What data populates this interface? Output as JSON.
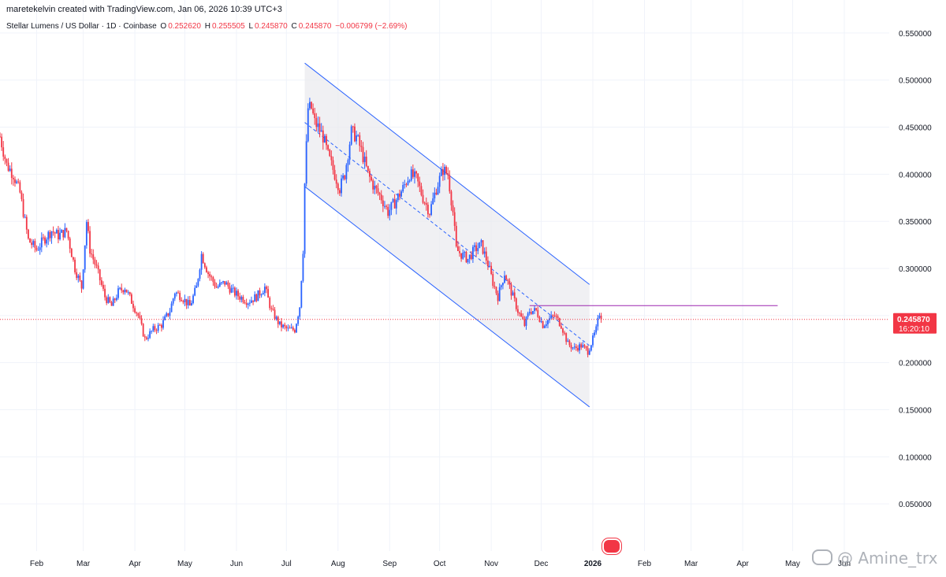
{
  "header": {
    "attribution": "maretekelvin created with TradingView.com, Jan 06, 2026 10:39 UTC+3",
    "symbol": "Stellar Lumens / US Dollar · 1D · Coinbase",
    "o_label": "O",
    "o_value": "0.252620",
    "h_label": "H",
    "h_value": "0.255505",
    "l_label": "L",
    "l_value": "0.245870",
    "c_label": "C",
    "c_value": "0.245870",
    "change": "−0.006799 (−2.69%)"
  },
  "price_tag": {
    "price": "0.245870",
    "countdown": "16:20:10"
  },
  "watermark": "@ Amine_trx",
  "colors": {
    "up": "#2962ff",
    "down": "#f23645",
    "channel": "#2962ff",
    "resistance": "#9c27b0",
    "tag": "#f23645"
  },
  "chart_data": {
    "type": "candlestick",
    "title": "Stellar Lumens / US Dollar · 1D · Coinbase",
    "y_ticks": [
      0.05,
      0.1,
      0.15,
      0.2,
      0.25,
      0.3,
      0.35,
      0.4,
      0.45,
      0.5,
      0.55
    ],
    "y_tick_labels": [
      "0.050000",
      "0.100000",
      "0.150000",
      "0.200000",
      "0.250000",
      "0.300000",
      "0.350000",
      "0.400000",
      "0.450000",
      "0.500000",
      "0.550000"
    ],
    "ylim": [
      0.0,
      0.585
    ],
    "x_labels": [
      "Feb",
      "Mar",
      "Apr",
      "May",
      "Jun",
      "Jul",
      "Aug",
      "Sep",
      "Oct",
      "Nov",
      "Dec",
      "2026",
      "Feb",
      "Mar",
      "Apr",
      "May",
      "Jun"
    ],
    "x_label_dates": [
      "2025-02-01",
      "2025-03-01",
      "2025-04-01",
      "2025-05-01",
      "2025-06-01",
      "2025-07-01",
      "2025-08-01",
      "2025-09-01",
      "2025-10-01",
      "2025-11-01",
      "2025-12-01",
      "2026-01-01",
      "2026-02-01",
      "2026-03-01",
      "2026-04-01",
      "2026-05-01",
      "2026-06-01"
    ],
    "xlim": [
      "2025-01-10",
      "2026-06-28"
    ],
    "last_date": "2026-01-06",
    "last_price": 0.24587,
    "price_path": [
      [
        "2025-01-10",
        0.44
      ],
      [
        "2025-01-14",
        0.41
      ],
      [
        "2025-01-18",
        0.4
      ],
      [
        "2025-01-22",
        0.38
      ],
      [
        "2025-01-27",
        0.33
      ],
      [
        "2025-02-01",
        0.32
      ],
      [
        "2025-02-05",
        0.33
      ],
      [
        "2025-02-10",
        0.34
      ],
      [
        "2025-02-14",
        0.335
      ],
      [
        "2025-02-19",
        0.34
      ],
      [
        "2025-02-24",
        0.3
      ],
      [
        "2025-02-28",
        0.28
      ],
      [
        "2025-03-03",
        0.35
      ],
      [
        "2025-03-05",
        0.32
      ],
      [
        "2025-03-09",
        0.3
      ],
      [
        "2025-03-14",
        0.27
      ],
      [
        "2025-03-18",
        0.26
      ],
      [
        "2025-03-22",
        0.275
      ],
      [
        "2025-03-26",
        0.28
      ],
      [
        "2025-03-30",
        0.265
      ],
      [
        "2025-04-03",
        0.25
      ],
      [
        "2025-04-07",
        0.225
      ],
      [
        "2025-04-12",
        0.235
      ],
      [
        "2025-04-17",
        0.24
      ],
      [
        "2025-04-22",
        0.255
      ],
      [
        "2025-04-25",
        0.275
      ],
      [
        "2025-04-29",
        0.27
      ],
      [
        "2025-05-04",
        0.26
      ],
      [
        "2025-05-08",
        0.28
      ],
      [
        "2025-05-11",
        0.315
      ],
      [
        "2025-05-15",
        0.295
      ],
      [
        "2025-05-20",
        0.28
      ],
      [
        "2025-05-25",
        0.285
      ],
      [
        "2025-05-30",
        0.275
      ],
      [
        "2025-06-03",
        0.27
      ],
      [
        "2025-06-08",
        0.265
      ],
      [
        "2025-06-13",
        0.27
      ],
      [
        "2025-06-18",
        0.28
      ],
      [
        "2025-06-22",
        0.255
      ],
      [
        "2025-06-27",
        0.24
      ],
      [
        "2025-07-02",
        0.235
      ],
      [
        "2025-07-06",
        0.235
      ],
      [
        "2025-07-09",
        0.26
      ],
      [
        "2025-07-11",
        0.32
      ],
      [
        "2025-07-12",
        0.39
      ],
      [
        "2025-07-14",
        0.47
      ],
      [
        "2025-07-16",
        0.47
      ],
      [
        "2025-07-18",
        0.455
      ],
      [
        "2025-07-20",
        0.45
      ],
      [
        "2025-07-23",
        0.44
      ],
      [
        "2025-07-26",
        0.42
      ],
      [
        "2025-07-29",
        0.405
      ],
      [
        "2025-08-02",
        0.385
      ],
      [
        "2025-08-05",
        0.4
      ],
      [
        "2025-08-09",
        0.445
      ],
      [
        "2025-08-12",
        0.44
      ],
      [
        "2025-08-15",
        0.425
      ],
      [
        "2025-08-19",
        0.4
      ],
      [
        "2025-08-23",
        0.385
      ],
      [
        "2025-08-27",
        0.375
      ],
      [
        "2025-08-31",
        0.36
      ],
      [
        "2025-09-04",
        0.37
      ],
      [
        "2025-09-09",
        0.385
      ],
      [
        "2025-09-13",
        0.4
      ],
      [
        "2025-09-17",
        0.395
      ],
      [
        "2025-09-21",
        0.375
      ],
      [
        "2025-09-25",
        0.36
      ],
      [
        "2025-09-29",
        0.385
      ],
      [
        "2025-10-03",
        0.405
      ],
      [
        "2025-10-06",
        0.4
      ],
      [
        "2025-10-09",
        0.36
      ],
      [
        "2025-10-11",
        0.32
      ],
      [
        "2025-10-14",
        0.315
      ],
      [
        "2025-10-18",
        0.31
      ],
      [
        "2025-10-22",
        0.32
      ],
      [
        "2025-10-26",
        0.325
      ],
      [
        "2025-10-30",
        0.305
      ],
      [
        "2025-11-02",
        0.285
      ],
      [
        "2025-11-05",
        0.27
      ],
      [
        "2025-11-09",
        0.295
      ],
      [
        "2025-11-13",
        0.275
      ],
      [
        "2025-11-17",
        0.255
      ],
      [
        "2025-11-21",
        0.24
      ],
      [
        "2025-11-24",
        0.255
      ],
      [
        "2025-11-28",
        0.255
      ],
      [
        "2025-12-02",
        0.24
      ],
      [
        "2025-12-05",
        0.245
      ],
      [
        "2025-12-09",
        0.25
      ],
      [
        "2025-12-13",
        0.24
      ],
      [
        "2025-12-17",
        0.22
      ],
      [
        "2025-12-21",
        0.215
      ],
      [
        "2025-12-25",
        0.218
      ],
      [
        "2025-12-29",
        0.212
      ],
      [
        "2026-01-01",
        0.225
      ],
      [
        "2026-01-03",
        0.235
      ],
      [
        "2026-01-05",
        0.2526
      ],
      [
        "2026-01-06",
        0.24587
      ]
    ],
    "channel": {
      "upper": [
        [
          "2025-07-12",
          0.518
        ],
        [
          "2025-12-30",
          0.283
        ]
      ],
      "middle": [
        [
          "2025-07-12",
          0.455
        ],
        [
          "2025-12-30",
          0.218
        ]
      ],
      "lower": [
        [
          "2025-07-12",
          0.387
        ],
        [
          "2025-12-30",
          0.153
        ]
      ]
    },
    "resistance": {
      "value": 0.2605,
      "from": "2025-11-24",
      "to": "2026-04-22"
    }
  }
}
